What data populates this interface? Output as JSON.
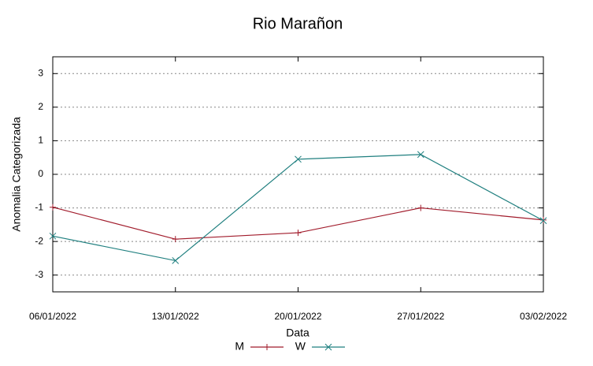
{
  "chart_data": {
    "type": "line",
    "title": "Rio Marañon",
    "xlabel": "Data",
    "ylabel": "Anomalia Categorizada",
    "categories": [
      "06/01/2022",
      "13/01/2022",
      "20/01/2022",
      "27/01/2022",
      "03/02/2022"
    ],
    "series": [
      {
        "name": "M",
        "color": "#a11b2b",
        "marker": "+",
        "values": [
          -0.98,
          -1.93,
          -1.74,
          -1.0,
          -1.36
        ]
      },
      {
        "name": "W",
        "color": "#1f7f7f",
        "marker": "x",
        "values": [
          -1.84,
          -2.57,
          0.45,
          0.59,
          -1.38
        ]
      }
    ],
    "ylim": [
      -3.5,
      3.5
    ],
    "yticks": [
      -3,
      -2,
      -1,
      0,
      1,
      2,
      3
    ],
    "grid": true,
    "legend": "bottom"
  }
}
